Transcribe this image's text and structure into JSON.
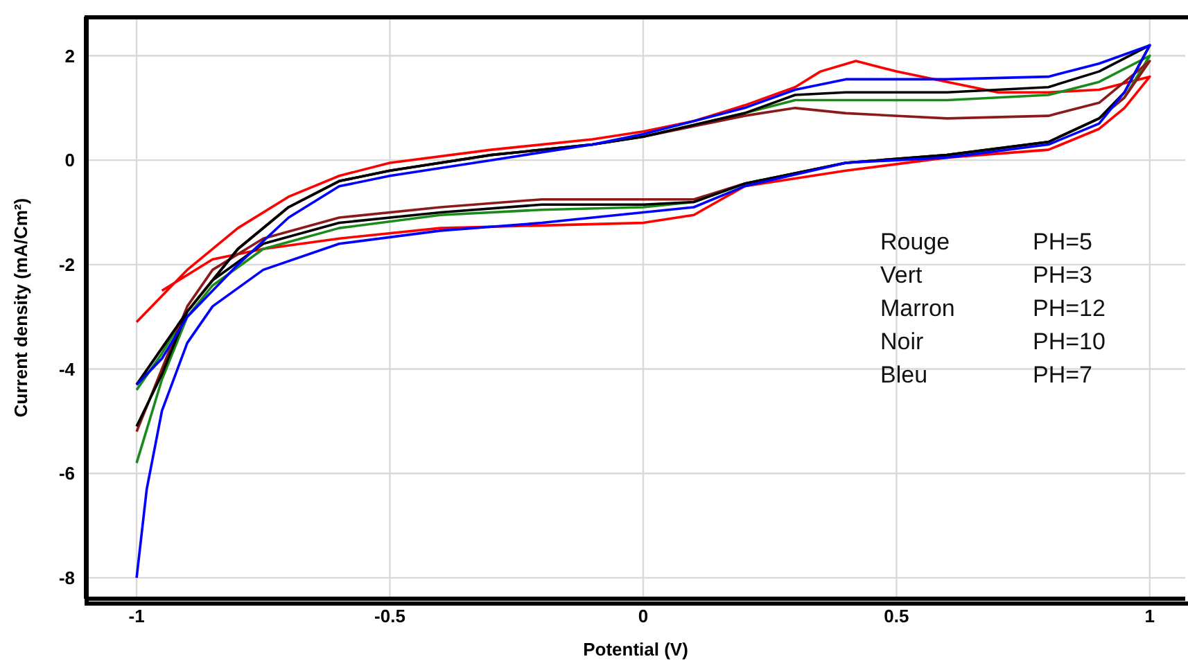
{
  "chart_data": {
    "type": "line",
    "xlabel": "Potential (V)",
    "ylabel": "Current density (mA/Cm²)",
    "xlim": [
      -1.1,
      1.07
    ],
    "ylim": [
      -8.4,
      2.75
    ],
    "xticks": [
      -1,
      -0.5,
      0,
      0.5,
      1
    ],
    "yticks": [
      -8,
      -6,
      -4,
      -2,
      0,
      2
    ],
    "grid": true,
    "legend": false,
    "marker": "none",
    "line_style": "solid",
    "series": [
      {
        "color": "#ff0000",
        "x": [
          -1,
          -0.95,
          -0.9,
          -0.8,
          -0.7,
          -0.6,
          -0.5,
          -0.3,
          -0.1,
          0,
          0.1,
          0.2,
          0.3,
          0.35,
          0.42,
          0.5,
          0.6,
          0.7,
          0.8,
          0.9,
          1,
          0.95,
          0.9,
          0.8,
          0.6,
          0.4,
          0.2,
          0.1,
          0,
          -0.2,
          -0.4,
          -0.6,
          -0.75,
          -0.85,
          -0.95
        ],
        "values": [
          -3.1,
          -2.6,
          -2.1,
          -1.3,
          -0.7,
          -0.3,
          -0.05,
          0.2,
          0.4,
          0.55,
          0.75,
          1.05,
          1.4,
          1.7,
          1.9,
          1.7,
          1.5,
          1.3,
          1.3,
          1.35,
          1.6,
          1.0,
          0.6,
          0.2,
          0.05,
          -0.2,
          -0.5,
          -1.05,
          -1.2,
          -1.25,
          -1.3,
          -1.5,
          -1.7,
          -1.9,
          -2.5
        ]
      },
      {
        "color": "#1a8a1a",
        "x": [
          -1,
          -0.95,
          -0.9,
          -0.8,
          -0.7,
          -0.6,
          -0.5,
          -0.3,
          -0.1,
          0,
          0.2,
          0.3,
          0.4,
          0.6,
          0.8,
          0.9,
          1,
          0.95,
          0.9,
          0.8,
          0.6,
          0.4,
          0.2,
          0.1,
          0,
          -0.2,
          -0.4,
          -0.6,
          -0.75,
          -0.85,
          -0.9,
          -0.95,
          -1
        ],
        "values": [
          -4.4,
          -3.7,
          -2.9,
          -1.7,
          -0.9,
          -0.4,
          -0.2,
          0.1,
          0.3,
          0.45,
          0.9,
          1.15,
          1.15,
          1.15,
          1.25,
          1.5,
          2.0,
          1.2,
          0.8,
          0.35,
          0.1,
          -0.05,
          -0.45,
          -0.8,
          -0.9,
          -0.95,
          -1.05,
          -1.3,
          -1.7,
          -2.4,
          -3.0,
          -4.2,
          -5.8
        ]
      },
      {
        "color": "#8b1a1a",
        "x": [
          -1,
          -0.95,
          -0.9,
          -0.8,
          -0.7,
          -0.6,
          -0.5,
          -0.3,
          -0.1,
          0,
          0.2,
          0.3,
          0.4,
          0.6,
          0.8,
          0.9,
          1,
          0.95,
          0.9,
          0.8,
          0.6,
          0.4,
          0.2,
          0.1,
          0,
          -0.2,
          -0.4,
          -0.6,
          -0.75,
          -0.85,
          -0.9,
          -0.95,
          -1
        ],
        "values": [
          -4.3,
          -3.6,
          -2.9,
          -1.7,
          -0.9,
          -0.4,
          -0.2,
          0.1,
          0.3,
          0.45,
          0.85,
          1.0,
          0.9,
          0.8,
          0.85,
          1.1,
          1.9,
          1.2,
          0.8,
          0.35,
          0.1,
          -0.05,
          -0.45,
          -0.75,
          -0.75,
          -0.75,
          -0.9,
          -1.1,
          -1.5,
          -2.1,
          -2.8,
          -4.0,
          -5.2
        ]
      },
      {
        "color": "#000000",
        "x": [
          -1,
          -0.95,
          -0.9,
          -0.8,
          -0.7,
          -0.6,
          -0.5,
          -0.3,
          -0.1,
          0,
          0.2,
          0.3,
          0.4,
          0.6,
          0.8,
          0.9,
          1,
          0.95,
          0.9,
          0.8,
          0.6,
          0.4,
          0.2,
          0.1,
          0,
          -0.2,
          -0.4,
          -0.6,
          -0.75,
          -0.85,
          -0.9,
          -0.95,
          -1
        ],
        "values": [
          -4.3,
          -3.6,
          -2.9,
          -1.7,
          -0.9,
          -0.4,
          -0.2,
          0.1,
          0.3,
          0.45,
          0.9,
          1.25,
          1.3,
          1.3,
          1.4,
          1.7,
          2.2,
          1.3,
          0.8,
          0.35,
          0.1,
          -0.05,
          -0.45,
          -0.8,
          -0.85,
          -0.85,
          -1.0,
          -1.2,
          -1.6,
          -2.3,
          -2.9,
          -4.1,
          -5.1
        ]
      },
      {
        "color": "#0000ff",
        "x": [
          -1,
          -0.95,
          -0.9,
          -0.8,
          -0.7,
          -0.6,
          -0.5,
          -0.3,
          -0.1,
          0,
          0.2,
          0.3,
          0.4,
          0.6,
          0.8,
          0.9,
          1,
          0.95,
          0.9,
          0.8,
          0.6,
          0.4,
          0.2,
          0.1,
          0,
          -0.2,
          -0.4,
          -0.6,
          -0.75,
          -0.85,
          -0.9,
          -0.95,
          -0.98,
          -1
        ],
        "values": [
          -4.3,
          -3.8,
          -3.0,
          -2.0,
          -1.1,
          -0.5,
          -0.3,
          0.0,
          0.3,
          0.5,
          1.0,
          1.35,
          1.55,
          1.55,
          1.6,
          1.85,
          2.2,
          1.3,
          0.7,
          0.3,
          0.05,
          -0.05,
          -0.5,
          -0.9,
          -1.0,
          -1.2,
          -1.35,
          -1.6,
          -2.1,
          -2.8,
          -3.5,
          -4.8,
          -6.3,
          -8.0
        ]
      }
    ],
    "annotations": [
      "Rouge PH=5",
      "Vert PH=3",
      "Marron PH=12",
      "Noir PH=10",
      "Bleu PH=7"
    ]
  }
}
